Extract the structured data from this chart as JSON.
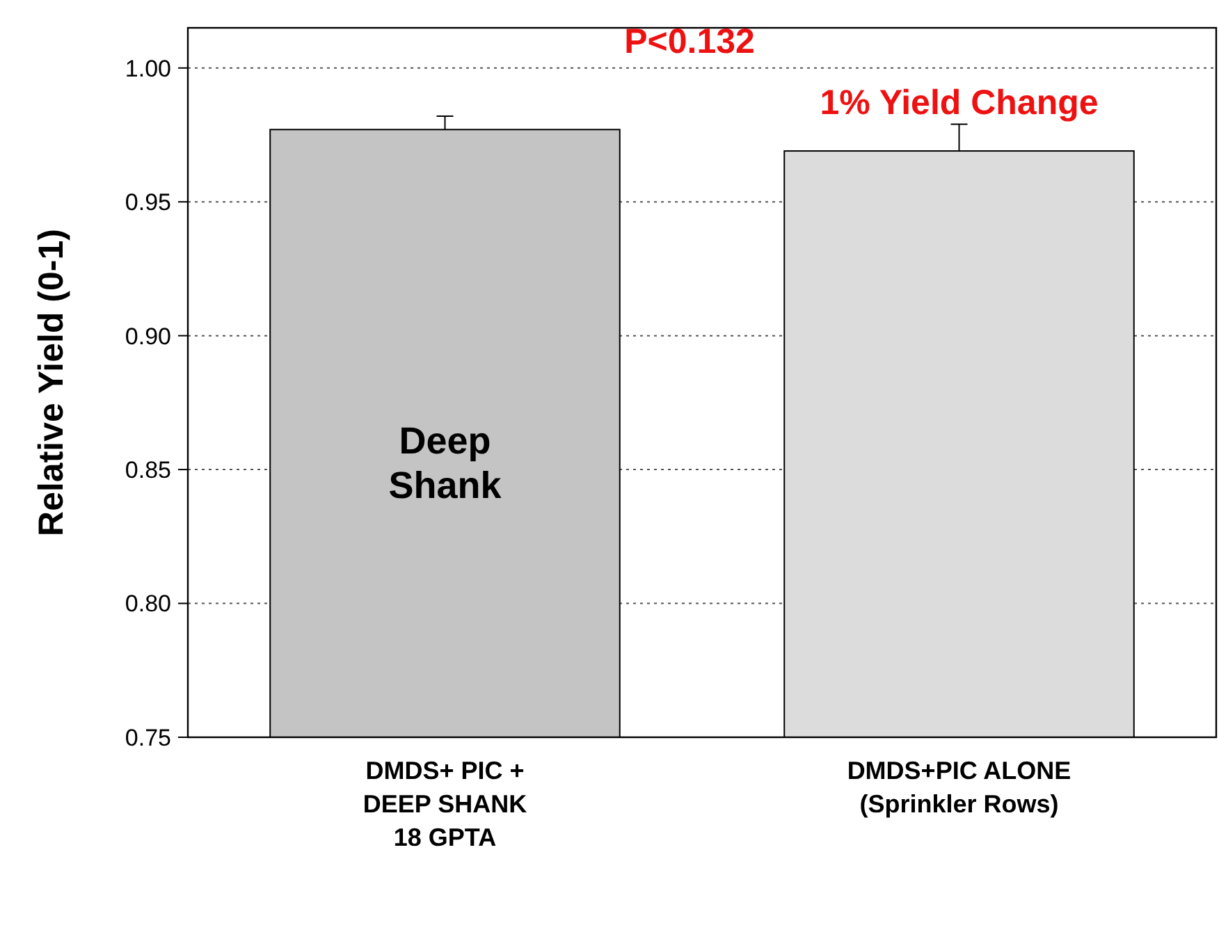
{
  "chart_data": {
    "type": "bar",
    "ylabel": "Relative Yield (0-1)",
    "categories": [
      "DMDS+ PIC +\nDEEP SHANK\n18 GPTA",
      "DMDS+PIC ALONE\n(Sprinkler Rows)"
    ],
    "values": [
      0.977,
      0.969
    ],
    "errors": [
      0.005,
      0.01
    ],
    "colors": [
      "#c4c4c4",
      "#dcdcdc"
    ],
    "ylim": [
      0.75,
      1.015
    ],
    "yticks": [
      {
        "value": 0.75,
        "label": "0.75"
      },
      {
        "value": 0.8,
        "label": "0.80"
      },
      {
        "value": 0.85,
        "label": "0.85"
      },
      {
        "value": 0.9,
        "label": "0.90"
      },
      {
        "value": 0.95,
        "label": "0.95"
      },
      {
        "value": 1,
        "label": "1.00"
      }
    ],
    "grid": "y",
    "annotations": [
      "P<0.132",
      "1% Yield Change",
      "Deep\nShank"
    ]
  }
}
